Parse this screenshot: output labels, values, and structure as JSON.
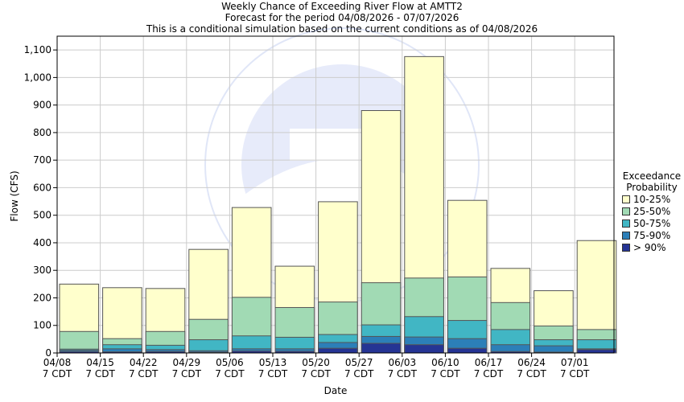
{
  "header": {
    "title": "Weekly Chance of Exceeding River Flow at AMTT2",
    "subtitle1": "Forecast for the period 04/08/2026 - 07/07/2026",
    "subtitle2": "This is a conditional simulation based on the current conditions as of 04/08/2026"
  },
  "colors": {
    "p10_25": "#ffffcc",
    "p25_50": "#a1dab4",
    "p50_75": "#41b6c4",
    "p75_90": "#2c7fb8",
    "p90": "#253494"
  },
  "legend": {
    "title_line1": "Exceedance",
    "title_line2": "Probability",
    "items": [
      {
        "label": "10-25%",
        "color": "#ffffcc"
      },
      {
        "label": "25-50%",
        "color": "#a1dab4"
      },
      {
        "label": "50-75%",
        "color": "#41b6c4"
      },
      {
        "label": "75-90%",
        "color": "#2c7fb8"
      },
      {
        "label": "> 90%",
        "color": "#253494"
      }
    ]
  },
  "chart_data": {
    "type": "bar",
    "xlabel": "Date",
    "ylabel": "Flow (CFS)",
    "ylim": [
      0,
      1150
    ],
    "yticks": [
      0,
      100,
      200,
      300,
      400,
      500,
      600,
      700,
      800,
      900,
      1000,
      1100
    ],
    "ytick_labels": [
      "0",
      "100",
      "200",
      "300",
      "400",
      "500",
      "600",
      "700",
      "800",
      "900",
      "1,000",
      "1,100"
    ],
    "categories": [
      "04/08",
      "04/15",
      "04/22",
      "04/29",
      "05/06",
      "05/13",
      "05/20",
      "05/27",
      "06/03",
      "06/10",
      "06/17",
      "06/24",
      "07/01"
    ],
    "tick_sublabel": "7 CDT",
    "series": [
      {
        "name": "> 90%",
        "values": [
          5,
          4,
          5,
          3,
          7,
          6,
          17,
          35,
          30,
          17,
          5,
          3,
          12
        ]
      },
      {
        "name": "75-90%",
        "values": [
          10,
          15,
          12,
          8,
          15,
          15,
          38,
          60,
          58,
          52,
          30,
          26,
          15
        ]
      },
      {
        "name": "50-75%",
        "values": [
          14,
          30,
          28,
          48,
          62,
          57,
          67,
          102,
          132,
          118,
          85,
          48,
          48
        ]
      },
      {
        "name": "25-50%",
        "values": [
          78,
          52,
          78,
          122,
          202,
          165,
          185,
          255,
          272,
          276,
          183,
          98,
          85
        ]
      },
      {
        "name": "10-25%",
        "values": [
          250,
          237,
          234,
          376,
          528,
          315,
          549,
          880,
          1076,
          554,
          307,
          226,
          408
        ]
      }
    ],
    "grid": true
  }
}
